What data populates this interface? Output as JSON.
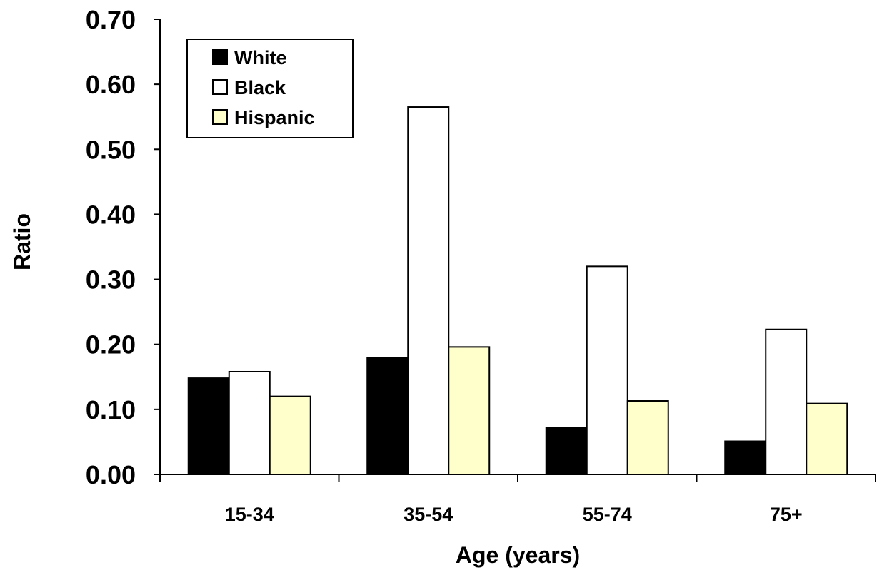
{
  "chart_data": {
    "type": "bar",
    "title": "",
    "xlabel": "Age (years)",
    "ylabel": "Ratio",
    "categories": [
      "15-34",
      "35-54",
      "55-74",
      "75+"
    ],
    "series": [
      {
        "name": "White",
        "color": "#000000",
        "values": [
          0.148,
          0.179,
          0.072,
          0.051
        ]
      },
      {
        "name": "Black",
        "color": "#ffffff",
        "values": [
          0.158,
          0.565,
          0.32,
          0.223
        ]
      },
      {
        "name": "Hispanic",
        "color": "#ffffcc",
        "values": [
          0.12,
          0.196,
          0.113,
          0.109
        ]
      }
    ],
    "ylim": [
      0,
      0.7
    ],
    "yticks": [
      "0.00",
      "0.10",
      "0.20",
      "0.30",
      "0.40",
      "0.50",
      "0.60",
      "0.70"
    ],
    "grid": false,
    "legend_position": "top-left"
  }
}
